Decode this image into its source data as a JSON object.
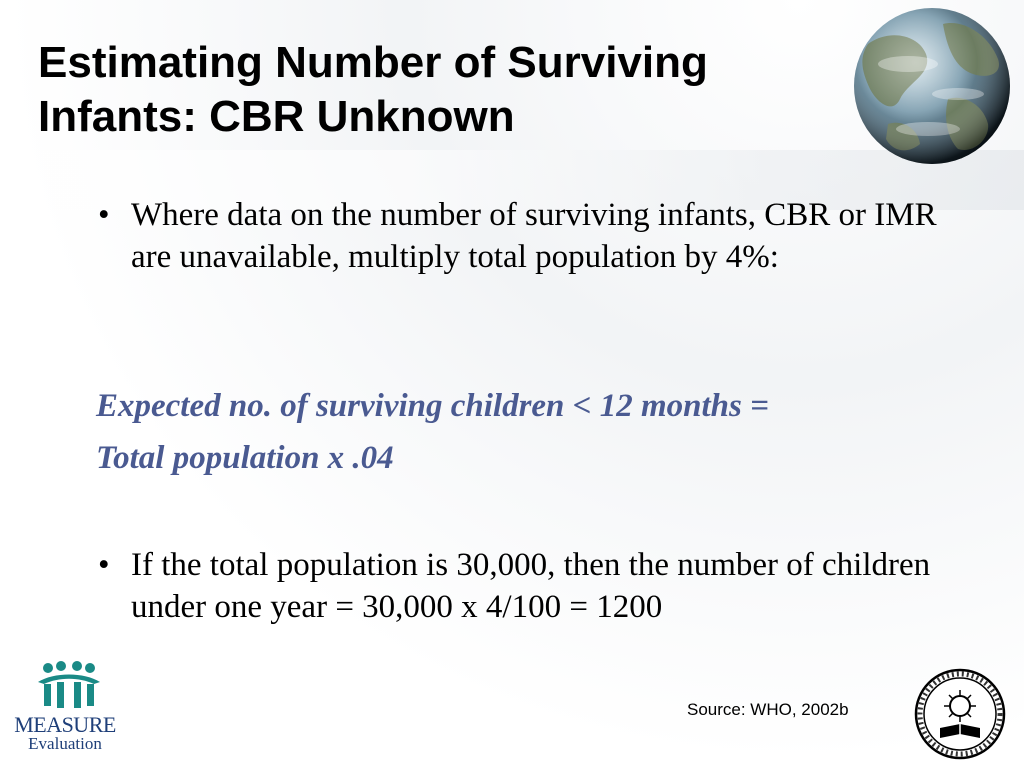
{
  "slide": {
    "title_lines": [
      "Estimating Number of Surviving",
      "Infants: CBR Unknown"
    ],
    "bullets": [
      {
        "marker": "•",
        "text": "Where data on the number of surviving infants, CBR or IMR are unavailable, multiply total population by 4%:"
      },
      {
        "marker": "•",
        "text": "If the total population is 30,000, then the number of children under one year = 30,000 x 4/100 = 1200"
      }
    ],
    "formula_lines": [
      "Expected no. of surviving children < 12 months =",
      "Total population x .04"
    ],
    "source": "Source: WHO, 2002b"
  },
  "logos": {
    "measure_name": "MEASURE",
    "measure_sub": "Evaluation",
    "measure_color": "#1f3f79",
    "measure_icon_color": "#1a8a86",
    "seal_icon": "addis-ababa-university-seal-icon",
    "globe_icon": "globe-icon"
  },
  "colors": {
    "formula": "#4a5a91",
    "text": "#000000"
  }
}
